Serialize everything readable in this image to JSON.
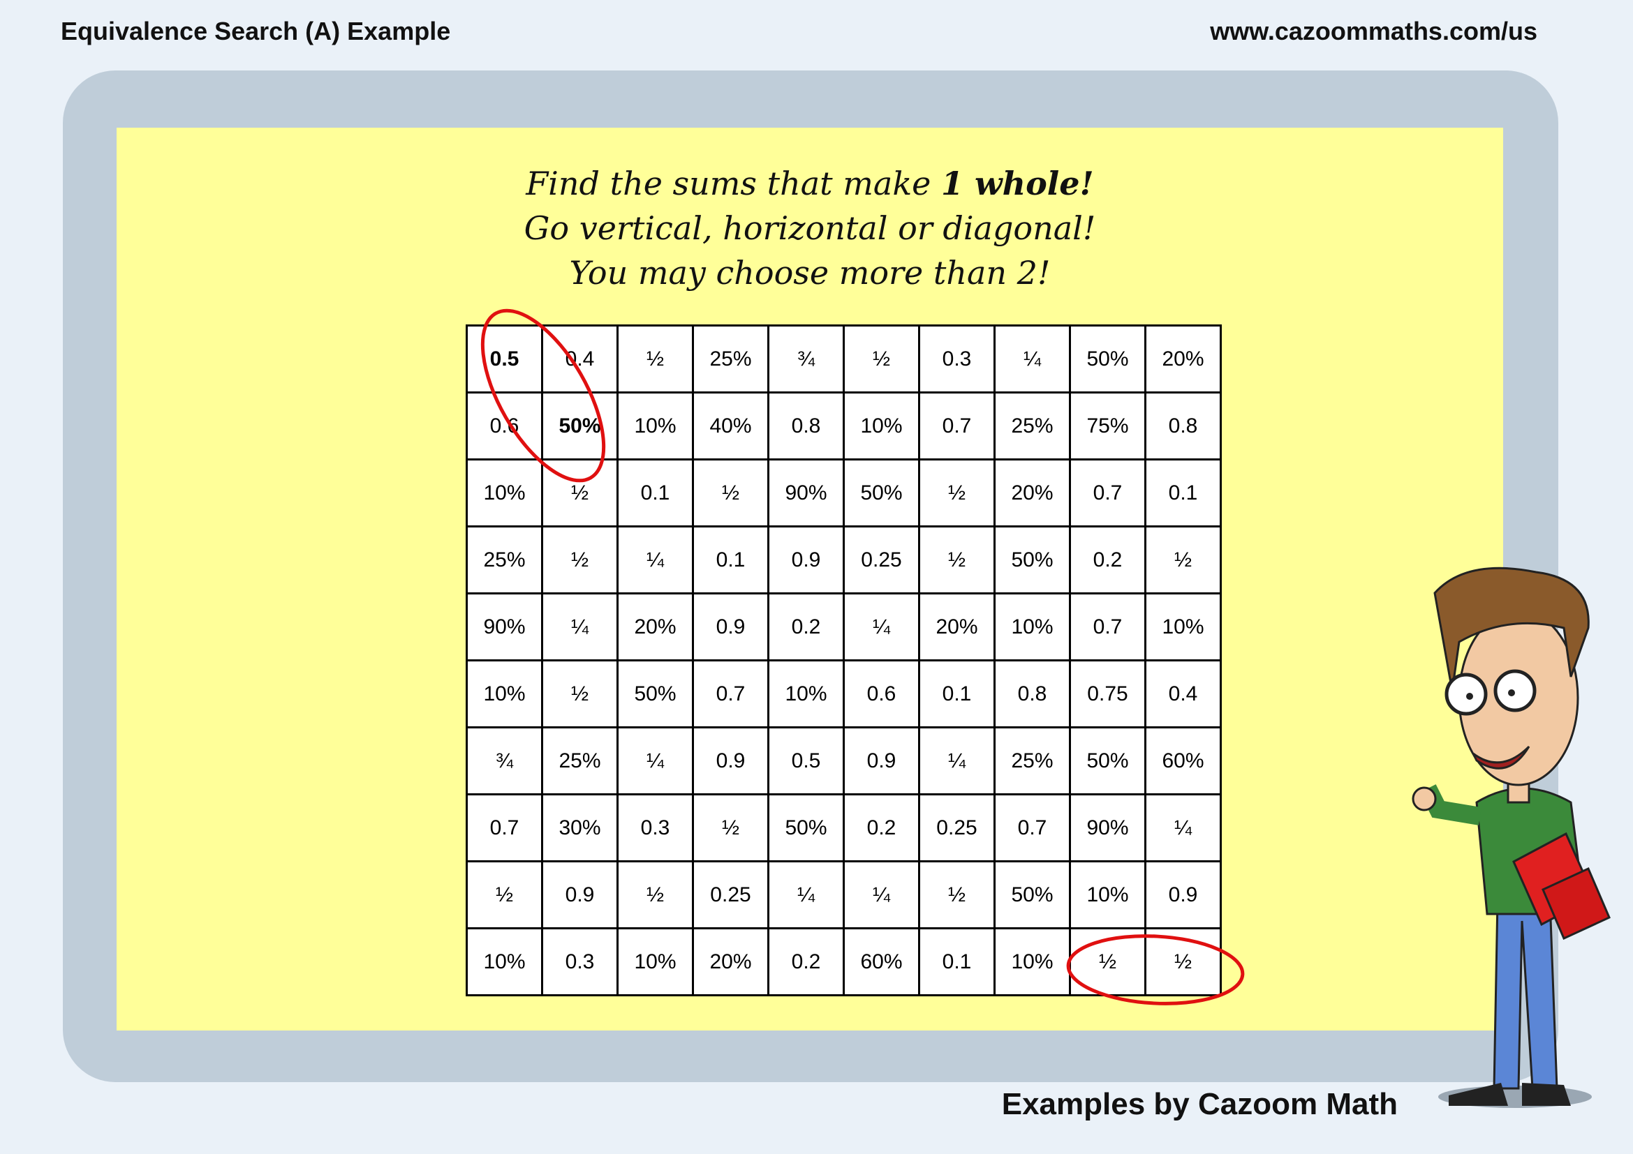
{
  "header": {
    "title": "Equivalence Search (A) Example",
    "url": "www.cazoommaths.com/us"
  },
  "instructions": {
    "line1_prefix": "Find the sums that make ",
    "line1_bold": "1 whole!",
    "line2": "Go vertical, horizontal or diagonal!",
    "line3": "You may choose more than 2!"
  },
  "grid": [
    [
      "0.5",
      "0.4",
      "½",
      "25%",
      "¾",
      "½",
      "0.3",
      "¼",
      "50%",
      "20%"
    ],
    [
      "0.6",
      "50%",
      "10%",
      "40%",
      "0.8",
      "10%",
      "0.7",
      "25%",
      "75%",
      "0.8"
    ],
    [
      "10%",
      "½",
      "0.1",
      "½",
      "90%",
      "50%",
      "½",
      "20%",
      "0.7",
      "0.1"
    ],
    [
      "25%",
      "½",
      "¼",
      "0.1",
      "0.9",
      "0.25",
      "½",
      "50%",
      "0.2",
      "½"
    ],
    [
      "90%",
      "¼",
      "20%",
      "0.9",
      "0.2",
      "¼",
      "20%",
      "10%",
      "0.7",
      "10%"
    ],
    [
      "10%",
      "½",
      "50%",
      "0.7",
      "10%",
      "0.6",
      "0.1",
      "0.8",
      "0.75",
      "0.4"
    ],
    [
      "¾",
      "25%",
      "¼",
      "0.9",
      "0.5",
      "0.9",
      "¼",
      "25%",
      "50%",
      "60%"
    ],
    [
      "0.7",
      "30%",
      "0.3",
      "½",
      "50%",
      "0.2",
      "0.25",
      "0.7",
      "90%",
      "¼"
    ],
    [
      "½",
      "0.9",
      "½",
      "0.25",
      "¼",
      "¼",
      "½",
      "50%",
      "10%",
      "0.9"
    ],
    [
      "10%",
      "0.3",
      "10%",
      "20%",
      "0.2",
      "60%",
      "0.1",
      "10%",
      "½",
      "½"
    ]
  ],
  "bold_cells": [
    [
      0,
      0
    ],
    [
      1,
      1
    ]
  ],
  "highlight_color": "#e01010",
  "footer": "Examples by Cazoom Math"
}
